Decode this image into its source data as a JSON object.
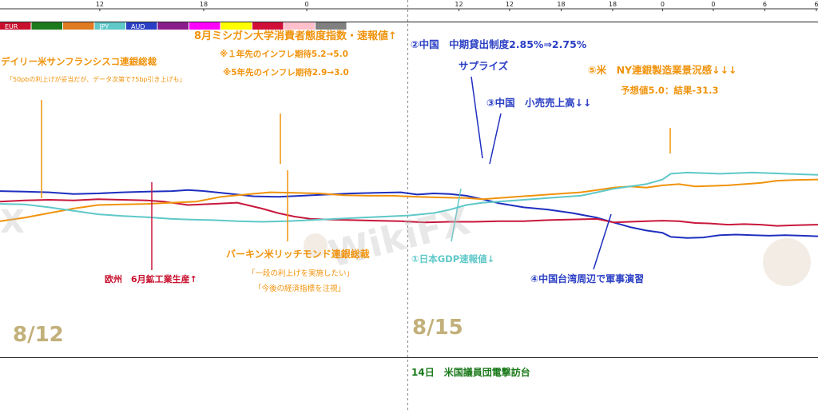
{
  "top_axis": {
    "ticks": [
      {
        "label": "12",
        "pos": 0.122
      },
      {
        "label": "18",
        "pos": 0.249
      },
      {
        "label": "0",
        "pos": 0.375
      },
      {
        "label": "12",
        "pos": 0.561
      },
      {
        "label": "12",
        "pos": 0.623
      },
      {
        "label": "18",
        "pos": 0.686
      },
      {
        "label": "18",
        "pos": 0.749
      },
      {
        "label": "0",
        "pos": 0.81
      },
      {
        "label": "0",
        "pos": 0.872
      },
      {
        "label": "6",
        "pos": 0.935
      },
      {
        "label": "6",
        "pos": 0.998
      }
    ]
  },
  "legend": {
    "swatches": [
      {
        "label": "EUR",
        "color": "#c8102e"
      },
      {
        "label": "",
        "color": "#1b7a1b"
      },
      {
        "label": "",
        "color": "#e07b22"
      },
      {
        "label": "JPY",
        "color": "#5fc8c8"
      },
      {
        "label": "AUD",
        "color": "#2b3fc4"
      },
      {
        "label": "",
        "color": "#8a1b8a"
      },
      {
        "label": "",
        "color": "#ff00ff"
      },
      {
        "label": "",
        "color": "#ffff00"
      },
      {
        "label": "",
        "color": "#d1103a"
      },
      {
        "label": "",
        "color": "#ffc0cb"
      },
      {
        "label": "",
        "color": "#808080"
      }
    ]
  },
  "dates": {
    "left": "8/12",
    "right": "8/15"
  },
  "watermark": {
    "text": "WikiFX"
  },
  "annotations": [
    {
      "id": "michigan_title",
      "text": "8月ミシガン大学消費者態度指数・速報値↑",
      "color": "#f0930c",
      "size": 13,
      "bold": true
    },
    {
      "id": "michigan_1y",
      "text": "※１年先のインフレ期待5.2→5.0",
      "color": "#f0930c",
      "size": 10.5,
      "bold": true
    },
    {
      "id": "michigan_5y",
      "text": "※5年先のインフレ期待2.9→3.0",
      "color": "#f0930c",
      "size": 10.5,
      "bold": true
    },
    {
      "id": "daly_title",
      "text": "デイリー米サンフランシスコ連銀総裁",
      "color": "#f0930c",
      "size": 11.5,
      "bold": true
    },
    {
      "id": "daly_quote",
      "text": "「50pbの利上げが妥当だが、データ次第で75bp引き上げも」",
      "color": "#f0930c",
      "size": 8,
      "bold": false
    },
    {
      "id": "china_mlf",
      "text": "②中国　中期貸出制度2.85%⇒2.75%",
      "color": "#2b3fc4",
      "size": 12.5,
      "bold": true
    },
    {
      "id": "surprise",
      "text": "サプライズ",
      "color": "#2b3fc4",
      "size": 12.5,
      "bold": true
    },
    {
      "id": "china_retail",
      "text": "③中国　小売売上高↓↓",
      "color": "#2b3fc4",
      "size": 12.5,
      "bold": true
    },
    {
      "id": "ny_title",
      "text": "⑤米　NY連銀製造業景況感↓↓↓",
      "color": "#f0930c",
      "size": 12.5,
      "bold": true
    },
    {
      "id": "ny_result",
      "text": "予想値5.0：結果-31.3",
      "color": "#f0930c",
      "size": 11.5,
      "bold": true
    },
    {
      "id": "europe_ip",
      "text": "欧州　6月鉱工業生産↑",
      "color": "#c8102e",
      "size": 11,
      "bold": true
    },
    {
      "id": "barkin_title",
      "text": "バーキン米リッチモンド連銀総裁",
      "color": "#f0930c",
      "size": 12,
      "bold": true
    },
    {
      "id": "barkin_q1",
      "text": "「一段の利上げを実施したい」",
      "color": "#f0930c",
      "size": 9.5,
      "bold": false
    },
    {
      "id": "barkin_q2",
      "text": "「今後の経済指標を注視」",
      "color": "#f0930c",
      "size": 9.5,
      "bold": false
    },
    {
      "id": "japan_gdp",
      "text": "①日本GDP速報値↓",
      "color": "#5fc8c8",
      "size": 11.5,
      "bold": true
    },
    {
      "id": "china_drill",
      "text": "④中国台湾周辺で軍事演習",
      "color": "#2b3fc4",
      "size": 12,
      "bold": true
    },
    {
      "id": "us_visit",
      "text": "14日　米国議員団電撃訪台",
      "color": "#1b7a1b",
      "size": 12,
      "bold": true
    }
  ],
  "chart_data": {
    "type": "line",
    "x_range": [
      0,
      100
    ],
    "y_range": [
      0,
      100
    ],
    "series": [
      {
        "name": "AUD",
        "color": "#1e2fbf",
        "points": [
          [
            0,
            42
          ],
          [
            3,
            41.5
          ],
          [
            6,
            41
          ],
          [
            9,
            39.5
          ],
          [
            12,
            40
          ],
          [
            15,
            41
          ],
          [
            18,
            41.5
          ],
          [
            21,
            42
          ],
          [
            23,
            43
          ],
          [
            25,
            42
          ],
          [
            27,
            40.5
          ],
          [
            29,
            39
          ],
          [
            31,
            37.5
          ],
          [
            34,
            37
          ],
          [
            37,
            38
          ],
          [
            40,
            39
          ],
          [
            43,
            40
          ],
          [
            46,
            40.5
          ],
          [
            49,
            41
          ],
          [
            51,
            39
          ],
          [
            53,
            40
          ],
          [
            55,
            39.5
          ],
          [
            57,
            38
          ],
          [
            59,
            35
          ],
          [
            61,
            31.5
          ],
          [
            64,
            28
          ],
          [
            67,
            26
          ],
          [
            70,
            23
          ],
          [
            73,
            19
          ],
          [
            75,
            15
          ],
          [
            77,
            11
          ],
          [
            79,
            8
          ],
          [
            81,
            6
          ],
          [
            82,
            2.5
          ],
          [
            84,
            1.5
          ],
          [
            86,
            2
          ],
          [
            88,
            4
          ],
          [
            90,
            4.5
          ],
          [
            92,
            4
          ],
          [
            94,
            3.5
          ],
          [
            96,
            4
          ],
          [
            98,
            3.5
          ],
          [
            100,
            3
          ]
        ]
      },
      {
        "name": "EUR",
        "color": "#c8173c",
        "points": [
          [
            0,
            33
          ],
          [
            3,
            34
          ],
          [
            6,
            34.5
          ],
          [
            9,
            34
          ],
          [
            12,
            35
          ],
          [
            15,
            34.5
          ],
          [
            18,
            34
          ],
          [
            20,
            33
          ],
          [
            23,
            30
          ],
          [
            26,
            31
          ],
          [
            29,
            32
          ],
          [
            32,
            27
          ],
          [
            34,
            23
          ],
          [
            36,
            20
          ],
          [
            38,
            18
          ],
          [
            40,
            17.5
          ],
          [
            43,
            17
          ],
          [
            46,
            16.5
          ],
          [
            49,
            16
          ],
          [
            52,
            15
          ],
          [
            55,
            15.5
          ],
          [
            58,
            15.5
          ],
          [
            61,
            16
          ],
          [
            64,
            16
          ],
          [
            67,
            17
          ],
          [
            70,
            17.5
          ],
          [
            73,
            18
          ],
          [
            75,
            15
          ],
          [
            77,
            15.5
          ],
          [
            79,
            16
          ],
          [
            81,
            16.5
          ],
          [
            83,
            16
          ],
          [
            85,
            14.5
          ],
          [
            87,
            14
          ],
          [
            89,
            13
          ],
          [
            91,
            13.5
          ],
          [
            93,
            13
          ],
          [
            95,
            12
          ],
          [
            97,
            12.5
          ],
          [
            100,
            13
          ]
        ]
      },
      {
        "name": "",
        "color": "#f0930c",
        "points": [
          [
            0,
            16
          ],
          [
            3,
            19
          ],
          [
            6,
            23
          ],
          [
            9,
            27
          ],
          [
            12,
            30
          ],
          [
            15,
            30.5
          ],
          [
            18,
            31
          ],
          [
            21,
            32
          ],
          [
            24,
            33
          ],
          [
            27,
            37
          ],
          [
            30,
            39
          ],
          [
            33,
            41
          ],
          [
            36,
            40.5
          ],
          [
            39,
            40
          ],
          [
            42,
            38.5
          ],
          [
            45,
            38
          ],
          [
            48,
            38
          ],
          [
            51,
            37
          ],
          [
            54,
            36.5
          ],
          [
            57,
            36
          ],
          [
            59,
            35
          ],
          [
            61,
            36
          ],
          [
            63,
            37
          ],
          [
            65,
            38
          ],
          [
            67,
            39
          ],
          [
            69,
            40
          ],
          [
            71,
            41
          ],
          [
            73,
            43
          ],
          [
            75,
            45
          ],
          [
            77,
            46
          ],
          [
            79,
            45
          ],
          [
            81,
            47
          ],
          [
            83,
            48
          ],
          [
            85,
            46
          ],
          [
            87,
            46.5
          ],
          [
            89,
            47
          ],
          [
            91,
            48
          ],
          [
            93,
            49
          ],
          [
            95,
            51
          ],
          [
            97,
            51.5
          ],
          [
            100,
            52
          ]
        ]
      },
      {
        "name": "JPY",
        "color": "#5fc8c8",
        "points": [
          [
            0,
            31
          ],
          [
            3,
            30.5
          ],
          [
            6,
            28
          ],
          [
            9,
            25
          ],
          [
            12,
            22
          ],
          [
            15,
            20.5
          ],
          [
            18,
            19.5
          ],
          [
            21,
            18
          ],
          [
            23,
            17.5
          ],
          [
            26,
            17
          ],
          [
            29,
            16
          ],
          [
            32,
            15.5
          ],
          [
            35,
            16
          ],
          [
            38,
            17
          ],
          [
            41,
            18
          ],
          [
            44,
            19
          ],
          [
            47,
            20
          ],
          [
            50,
            21
          ],
          [
            53,
            23
          ],
          [
            55,
            26
          ],
          [
            57,
            30
          ],
          [
            59,
            32
          ],
          [
            61,
            33
          ],
          [
            63,
            34
          ],
          [
            65,
            35
          ],
          [
            67,
            36
          ],
          [
            69,
            37
          ],
          [
            71,
            38
          ],
          [
            73,
            41
          ],
          [
            75,
            44
          ],
          [
            77,
            46
          ],
          [
            79,
            48
          ],
          [
            81,
            52
          ],
          [
            82,
            57
          ],
          [
            84,
            58
          ],
          [
            86,
            57.5
          ],
          [
            88,
            57
          ],
          [
            90,
            57.5
          ],
          [
            92,
            58
          ],
          [
            94,
            57.5
          ],
          [
            96,
            57
          ],
          [
            98,
            56.5
          ],
          [
            100,
            56
          ]
        ]
      }
    ]
  }
}
